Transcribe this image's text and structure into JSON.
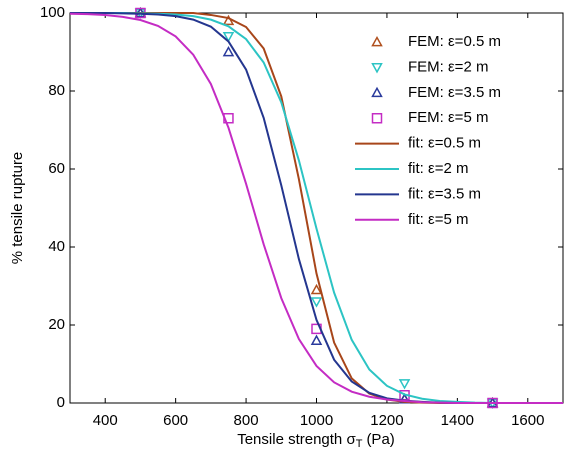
{
  "chart_data": {
    "type": "line",
    "ylabel": "% tensile rupture",
    "xlabel": [
      "Tensile strength σ",
      "T",
      "(Pa)"
    ],
    "xlim": [
      300,
      1700
    ],
    "xticks": [
      400,
      600,
      800,
      1000,
      1200,
      1400,
      1600
    ],
    "ylim": [
      0,
      100
    ],
    "yticks": [
      0,
      20,
      40,
      60,
      80,
      100
    ],
    "legend": "upper right",
    "grid": false,
    "series": [
      {
        "name": "FEM: ε=0.5 m",
        "mode": "markers",
        "marker": "triangle-up",
        "color": "#b0501e",
        "x": [
          500,
          750,
          1000,
          1250,
          1500
        ],
        "values": [
          100,
          98,
          29,
          1,
          0
        ]
      },
      {
        "name": "FEM: ε=2 m",
        "mode": "markers",
        "marker": "triangle-down",
        "color": "#2cc4c4",
        "x": [
          500,
          750,
          1000,
          1250,
          1500
        ],
        "values": [
          100,
          94,
          26,
          5,
          0
        ]
      },
      {
        "name": "FEM: ε=3.5 m",
        "mode": "markers",
        "marker": "triangle-up",
        "color": "#2a3a9c",
        "x": [
          500,
          750,
          1000,
          1250,
          1500
        ],
        "values": [
          100,
          90,
          16,
          1,
          0
        ]
      },
      {
        "name": "FEM: ε=5 m",
        "mode": "markers",
        "marker": "square",
        "color": "#c42cc4",
        "x": [
          500,
          750,
          1000,
          1250,
          1500
        ],
        "values": [
          100,
          73,
          19,
          2,
          0
        ]
      },
      {
        "name": "fit: ε=0.5 m",
        "mode": "line",
        "color": "#a8461a",
        "x": [
          300,
          350,
          400,
          450,
          500,
          550,
          600,
          650,
          700,
          750,
          800,
          850,
          900,
          950,
          1000,
          1050,
          1100,
          1150,
          1200,
          1250,
          1300,
          1350,
          1400,
          1450,
          1500,
          1550,
          1600,
          1650,
          1700
        ],
        "values": [
          100,
          100,
          100,
          100,
          100,
          100,
          100,
          100,
          99.5,
          98.7,
          96.4,
          90.9,
          78.6,
          57.4,
          33.2,
          15.5,
          6.3,
          2.4,
          0.9,
          0.3,
          0.1,
          0,
          0,
          0,
          0,
          0,
          0,
          0,
          0
        ]
      },
      {
        "name": "fit: ε=2 m",
        "mode": "line",
        "color": "#2cc4c4",
        "x": [
          300,
          350,
          400,
          450,
          500,
          550,
          600,
          650,
          700,
          750,
          800,
          850,
          900,
          950,
          1000,
          1050,
          1100,
          1150,
          1200,
          1250,
          1300,
          1350,
          1400,
          1450,
          1500,
          1550,
          1600,
          1650,
          1700
        ],
        "values": [
          100,
          100,
          100,
          100,
          99.9,
          99.8,
          99.6,
          99.2,
          98.3,
          96.6,
          93.3,
          87.3,
          77.1,
          62.2,
          44.7,
          28.3,
          16.2,
          8.6,
          4.4,
          2.2,
          1.1,
          0.5,
          0.3,
          0.1,
          0,
          0,
          0,
          0,
          0
        ]
      },
      {
        "name": "fit: ε=3.5 m",
        "mode": "line",
        "color": "#24368f",
        "x": [
          300,
          350,
          400,
          450,
          500,
          550,
          600,
          650,
          700,
          750,
          800,
          850,
          900,
          950,
          1000,
          1050,
          1100,
          1150,
          1200,
          1250,
          1300,
          1350,
          1400,
          1450,
          1500,
          1550,
          1600,
          1650,
          1700
        ],
        "values": [
          100,
          100,
          100,
          99.9,
          99.8,
          99.6,
          99.2,
          98.3,
          96.5,
          92.7,
          85.5,
          73.1,
          55.8,
          36.9,
          21.3,
          11.1,
          5.5,
          2.6,
          1.2,
          0.6,
          0.3,
          0.1,
          0,
          0,
          0,
          0,
          0,
          0,
          0
        ]
      },
      {
        "name": "fit: ε=5 m",
        "mode": "line",
        "color": "#c42cc4",
        "x": [
          300,
          350,
          400,
          450,
          500,
          550,
          600,
          650,
          700,
          750,
          800,
          850,
          900,
          950,
          1000,
          1050,
          1100,
          1150,
          1200,
          1250,
          1300,
          1350,
          1400,
          1450,
          1500,
          1550,
          1600,
          1650,
          1700
        ],
        "values": [
          99.8,
          99.7,
          99.5,
          99.0,
          98.2,
          96.7,
          94.0,
          89.3,
          81.8,
          70.6,
          56.2,
          40.7,
          26.9,
          16.4,
          9.5,
          5.3,
          2.9,
          1.6,
          0.9,
          0.5,
          0.2,
          0.1,
          0,
          0,
          0,
          0,
          0,
          0,
          0
        ]
      }
    ]
  }
}
